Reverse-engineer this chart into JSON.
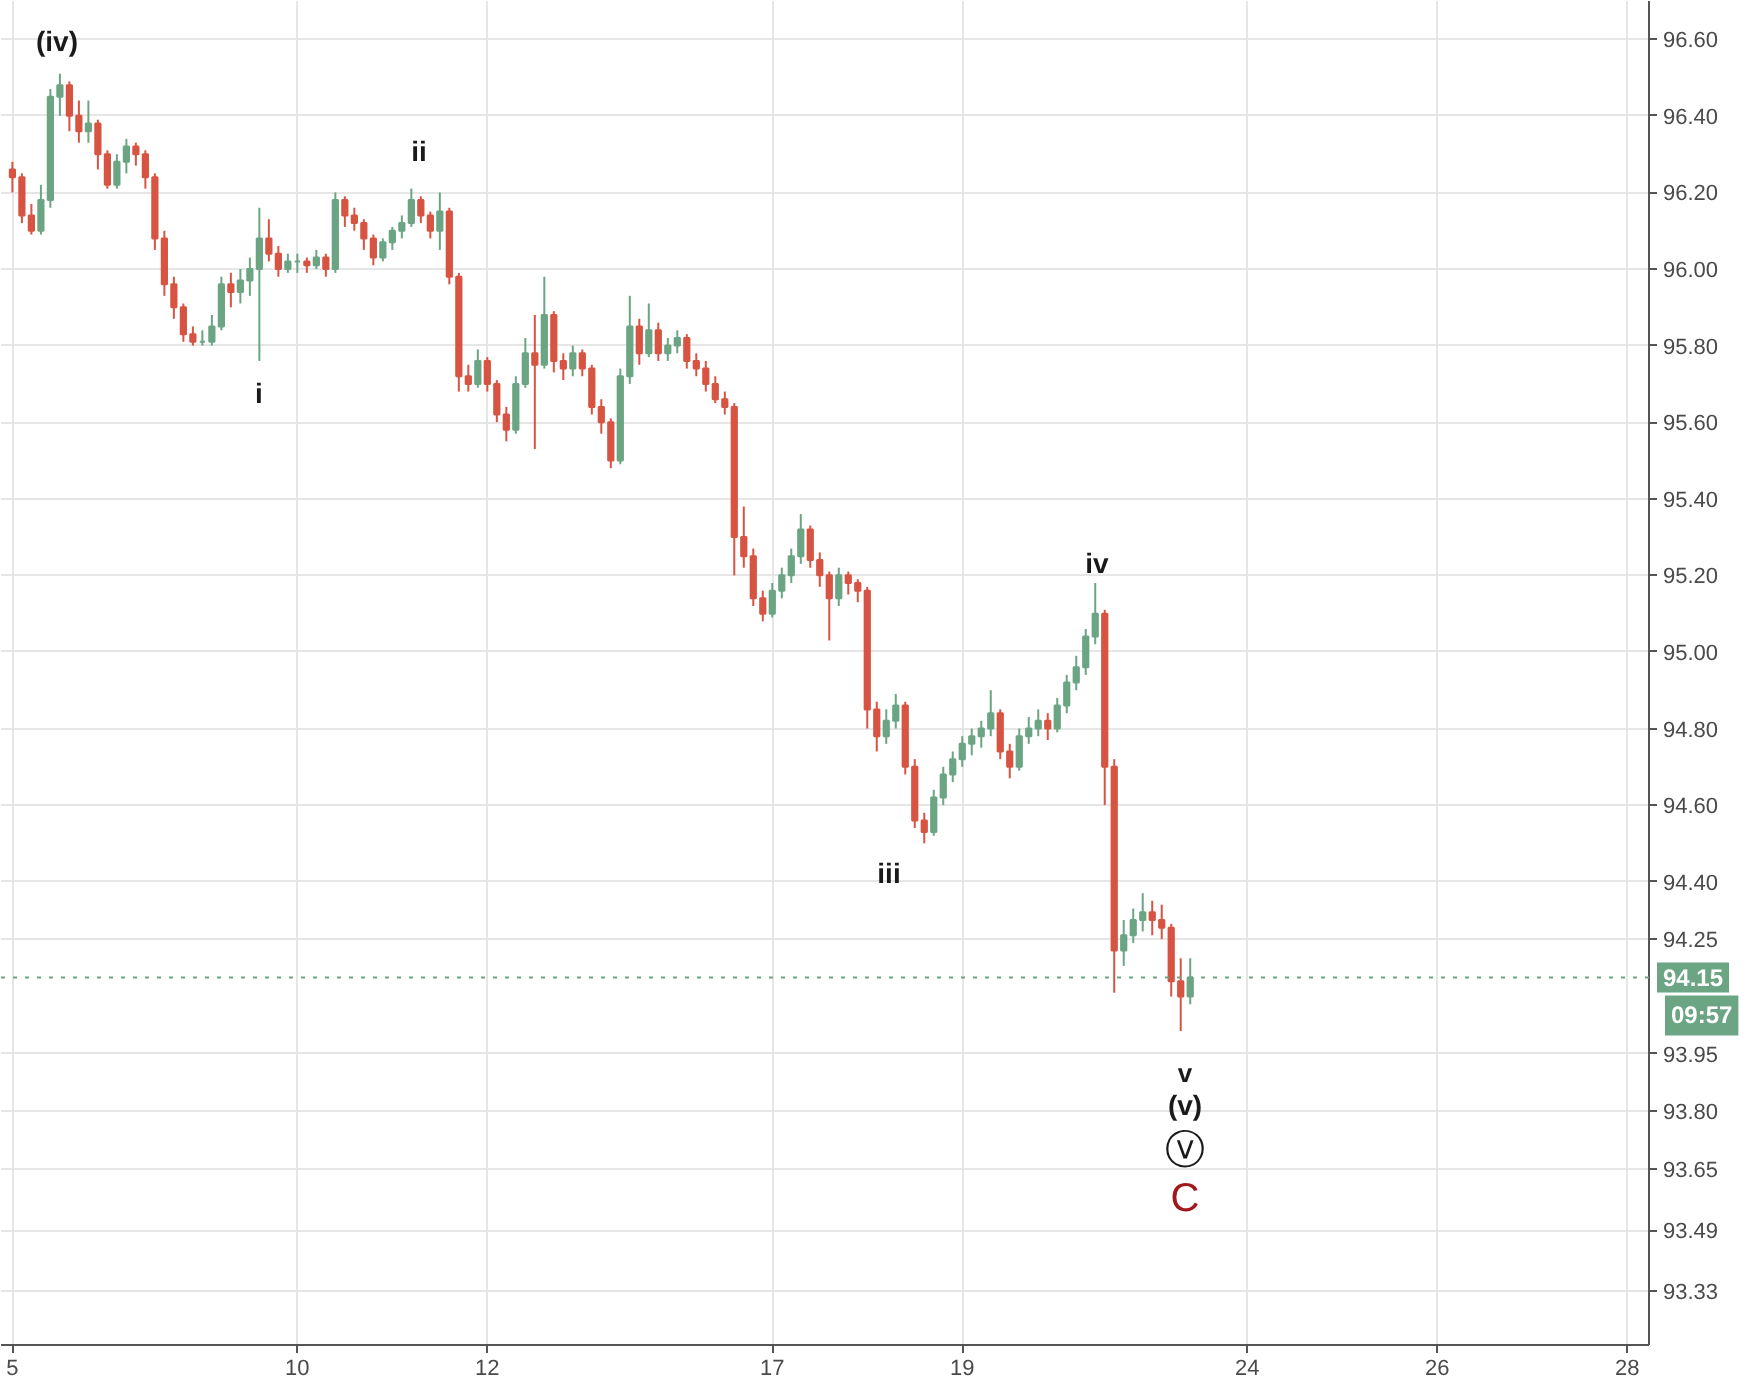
{
  "chart_data": {
    "type": "candlestick",
    "categories": [
      "5",
      null,
      null,
      null,
      null,
      null,
      null,
      null,
      null,
      null,
      null,
      null,
      null,
      null,
      null,
      null,
      null,
      null,
      null,
      null,
      null,
      null,
      null,
      null,
      null,
      null,
      null,
      null,
      null,
      null,
      "10",
      null,
      null,
      null,
      null,
      null,
      null,
      null,
      null,
      null,
      null,
      null,
      null,
      null,
      null,
      null,
      null,
      null,
      null,
      null,
      "12",
      null,
      null,
      null,
      null,
      null,
      null,
      null,
      null,
      null,
      null,
      null,
      null,
      null,
      null,
      null,
      null,
      null,
      null,
      null,
      null,
      null,
      null,
      null,
      null,
      null,
      null,
      null,
      null,
      null,
      "17",
      null,
      null,
      null,
      null,
      null,
      null,
      null,
      null,
      null,
      null,
      null,
      null,
      null,
      null,
      null,
      null,
      null,
      null,
      null,
      "19",
      null,
      null,
      null,
      null,
      null,
      null,
      null,
      null,
      null,
      null,
      null,
      null,
      null,
      null,
      null,
      null,
      null,
      null,
      null,
      null,
      null,
      null,
      null,
      null,
      null,
      null,
      null,
      null,
      null,
      "24",
      null,
      null,
      null,
      null,
      null,
      null,
      null,
      null,
      null,
      null,
      null,
      null,
      null,
      null,
      null,
      null,
      null,
      null,
      null,
      "26",
      null,
      null,
      null,
      null,
      null,
      null,
      null,
      null,
      null,
      null,
      null,
      null,
      null,
      null,
      null,
      null,
      null,
      null,
      null,
      "28"
    ],
    "ohlc": [
      [
        96.26,
        96.28,
        96.2,
        96.24
      ],
      [
        96.24,
        96.25,
        96.12,
        96.14
      ],
      [
        96.14,
        96.17,
        96.09,
        96.1
      ],
      [
        96.1,
        96.22,
        96.09,
        96.18
      ],
      [
        96.18,
        96.47,
        96.16,
        96.45
      ],
      [
        96.45,
        96.51,
        96.4,
        96.48
      ],
      [
        96.48,
        96.49,
        96.36,
        96.4
      ],
      [
        96.4,
        96.44,
        96.33,
        96.36
      ],
      [
        96.36,
        96.44,
        96.33,
        96.38
      ],
      [
        96.38,
        96.39,
        96.26,
        96.3
      ],
      [
        96.3,
        96.31,
        96.21,
        96.22
      ],
      [
        96.22,
        96.3,
        96.21,
        96.28
      ],
      [
        96.28,
        96.34,
        96.25,
        96.32
      ],
      [
        96.32,
        96.33,
        96.27,
        96.3
      ],
      [
        96.3,
        96.31,
        96.21,
        96.24
      ],
      [
        96.24,
        96.25,
        96.05,
        96.08
      ],
      [
        96.08,
        96.1,
        95.93,
        95.96
      ],
      [
        95.96,
        95.98,
        95.87,
        95.9
      ],
      [
        95.9,
        95.91,
        95.81,
        95.83
      ],
      [
        95.83,
        95.85,
        95.8,
        95.81
      ],
      [
        95.81,
        95.84,
        95.8,
        95.81
      ],
      [
        95.81,
        95.88,
        95.8,
        95.85
      ],
      [
        95.85,
        95.98,
        95.84,
        95.96
      ],
      [
        95.96,
        95.99,
        95.9,
        95.94
      ],
      [
        95.94,
        96.0,
        95.91,
        95.97
      ],
      [
        95.97,
        96.03,
        95.93,
        96.0
      ],
      [
        96.0,
        96.16,
        95.76,
        96.08
      ],
      [
        96.08,
        96.13,
        96.02,
        96.04
      ],
      [
        96.04,
        96.06,
        95.98,
        96.0
      ],
      [
        96.0,
        96.04,
        95.99,
        96.02
      ],
      [
        96.02,
        96.04,
        95.99,
        96.02
      ],
      [
        96.02,
        96.03,
        95.99,
        96.01
      ],
      [
        96.01,
        96.05,
        96.0,
        96.03
      ],
      [
        96.03,
        96.04,
        95.98,
        96.0
      ],
      [
        96.0,
        96.2,
        95.99,
        96.18
      ],
      [
        96.18,
        96.19,
        96.11,
        96.14
      ],
      [
        96.14,
        96.16,
        96.1,
        96.12
      ],
      [
        96.12,
        96.13,
        96.05,
        96.08
      ],
      [
        96.08,
        96.09,
        96.01,
        96.03
      ],
      [
        96.03,
        96.08,
        96.02,
        96.07
      ],
      [
        96.07,
        96.11,
        96.05,
        96.1
      ],
      [
        96.1,
        96.14,
        96.08,
        96.12
      ],
      [
        96.12,
        96.21,
        96.11,
        96.18
      ],
      [
        96.18,
        96.19,
        96.12,
        96.14
      ],
      [
        96.14,
        96.15,
        96.08,
        96.1
      ],
      [
        96.1,
        96.2,
        96.05,
        96.15
      ],
      [
        96.15,
        96.16,
        95.96,
        95.98
      ],
      [
        95.98,
        95.99,
        95.68,
        95.72
      ],
      [
        95.72,
        95.75,
        95.68,
        95.7
      ],
      [
        95.7,
        95.79,
        95.69,
        95.76
      ],
      [
        95.76,
        95.77,
        95.68,
        95.7
      ],
      [
        95.7,
        95.71,
        95.6,
        95.62
      ],
      [
        95.62,
        95.64,
        95.55,
        95.58
      ],
      [
        95.58,
        95.72,
        95.57,
        95.7
      ],
      [
        95.7,
        95.82,
        95.69,
        95.78
      ],
      [
        95.78,
        95.88,
        95.53,
        95.75
      ],
      [
        95.75,
        95.98,
        95.74,
        95.88
      ],
      [
        95.88,
        95.89,
        95.73,
        95.76
      ],
      [
        95.76,
        95.78,
        95.71,
        95.74
      ],
      [
        95.74,
        95.8,
        95.72,
        95.78
      ],
      [
        95.78,
        95.79,
        95.72,
        95.74
      ],
      [
        95.74,
        95.75,
        95.62,
        95.64
      ],
      [
        95.64,
        95.66,
        95.57,
        95.6
      ],
      [
        95.6,
        95.61,
        95.48,
        95.5
      ],
      [
        95.5,
        95.74,
        95.49,
        95.72
      ],
      [
        95.72,
        95.93,
        95.7,
        95.85
      ],
      [
        95.85,
        95.87,
        95.75,
        95.78
      ],
      [
        95.78,
        95.91,
        95.77,
        95.84
      ],
      [
        95.84,
        95.86,
        95.76,
        95.78
      ],
      [
        95.78,
        95.82,
        95.76,
        95.8
      ],
      [
        95.8,
        95.84,
        95.78,
        95.82
      ],
      [
        95.82,
        95.83,
        95.74,
        95.76
      ],
      [
        95.76,
        95.78,
        95.72,
        95.74
      ],
      [
        95.74,
        95.76,
        95.68,
        95.7
      ],
      [
        95.7,
        95.72,
        95.65,
        95.66
      ],
      [
        95.66,
        95.68,
        95.62,
        95.64
      ],
      [
        95.64,
        95.65,
        95.2,
        95.3
      ],
      [
        95.3,
        95.38,
        95.22,
        95.25
      ],
      [
        95.25,
        95.27,
        95.12,
        95.14
      ],
      [
        95.14,
        95.16,
        95.08,
        95.1
      ],
      [
        95.1,
        95.18,
        95.09,
        95.16
      ],
      [
        95.16,
        95.22,
        95.14,
        95.2
      ],
      [
        95.2,
        95.27,
        95.18,
        95.25
      ],
      [
        95.25,
        95.36,
        95.23,
        95.32
      ],
      [
        95.32,
        95.33,
        95.22,
        95.24
      ],
      [
        95.24,
        95.26,
        95.17,
        95.2
      ],
      [
        95.2,
        95.21,
        95.03,
        95.14
      ],
      [
        95.14,
        95.22,
        95.12,
        95.2
      ],
      [
        95.2,
        95.21,
        95.15,
        95.18
      ],
      [
        95.18,
        95.19,
        95.13,
        95.16
      ],
      [
        95.16,
        95.17,
        94.8,
        94.85
      ],
      [
        94.85,
        94.87,
        94.74,
        94.78
      ],
      [
        94.78,
        94.85,
        94.76,
        94.82
      ],
      [
        94.82,
        94.89,
        94.8,
        94.86
      ],
      [
        94.86,
        94.87,
        94.68,
        94.7
      ],
      [
        94.7,
        94.72,
        94.54,
        94.56
      ],
      [
        94.56,
        94.58,
        94.5,
        94.53
      ],
      [
        94.53,
        94.64,
        94.52,
        94.62
      ],
      [
        94.62,
        94.7,
        94.6,
        94.68
      ],
      [
        94.68,
        94.74,
        94.66,
        94.72
      ],
      [
        94.72,
        94.78,
        94.7,
        94.76
      ],
      [
        94.76,
        94.8,
        94.73,
        94.78
      ],
      [
        94.78,
        94.82,
        94.75,
        94.8
      ],
      [
        94.8,
        94.9,
        94.78,
        94.84
      ],
      [
        94.84,
        94.85,
        94.72,
        94.74
      ],
      [
        94.74,
        94.76,
        94.67,
        94.7
      ],
      [
        94.7,
        94.8,
        94.69,
        94.78
      ],
      [
        94.78,
        94.83,
        94.76,
        94.8
      ],
      [
        94.8,
        94.85,
        94.78,
        94.82
      ],
      [
        94.82,
        94.84,
        94.77,
        94.8
      ],
      [
        94.8,
        94.88,
        94.79,
        94.86
      ],
      [
        94.86,
        94.94,
        94.84,
        94.92
      ],
      [
        94.92,
        94.99,
        94.9,
        94.96
      ],
      [
        94.96,
        95.06,
        94.94,
        95.04
      ],
      [
        95.04,
        95.18,
        95.02,
        95.1
      ],
      [
        95.1,
        95.11,
        94.6,
        94.7
      ],
      [
        94.7,
        94.72,
        94.11,
        94.22
      ],
      [
        94.22,
        94.3,
        94.18,
        94.26
      ],
      [
        94.26,
        94.33,
        94.24,
        94.3
      ],
      [
        94.3,
        94.37,
        94.27,
        94.32
      ],
      [
        94.32,
        94.35,
        94.26,
        94.3
      ],
      [
        94.3,
        94.34,
        94.25,
        94.28
      ],
      [
        94.28,
        94.29,
        94.1,
        94.14
      ],
      [
        94.14,
        94.2,
        94.01,
        94.1
      ],
      [
        94.1,
        94.2,
        94.08,
        94.15
      ],
      null,
      null,
      null,
      null,
      null,
      null,
      null,
      null,
      null,
      null,
      null,
      null,
      null,
      null,
      null,
      null,
      null,
      null,
      null,
      null,
      null,
      null,
      null,
      null,
      null,
      null,
      null,
      null,
      null,
      null,
      null,
      null,
      null,
      null,
      null,
      null,
      null,
      null,
      null,
      null,
      null,
      null,
      null,
      null,
      null,
      null
    ],
    "colors": [
      "#d75442",
      "#d75442",
      "#d75442",
      "#6ba583",
      "#6ba583",
      "#6ba583",
      "#d75442",
      "#d75442",
      "#6ba583",
      "#d75442",
      "#d75442",
      "#6ba583",
      "#6ba583",
      "#d75442",
      "#d75442",
      "#d75442",
      "#d75442",
      "#d75442",
      "#d75442",
      "#d75442",
      "#6ba583",
      "#6ba583",
      "#6ba583",
      "#d75442",
      "#6ba583",
      "#6ba583",
      "#6ba583",
      "#d75442",
      "#d75442",
      "#6ba583",
      "#6ba583",
      "#d75442",
      "#6ba583",
      "#d75442",
      "#6ba583",
      "#d75442",
      "#d75442",
      "#d75442",
      "#d75442",
      "#6ba583",
      "#6ba583",
      "#6ba583",
      "#6ba583",
      "#d75442",
      "#d75442",
      "#6ba583",
      "#d75442",
      "#d75442",
      "#d75442",
      "#6ba583",
      "#d75442",
      "#d75442",
      "#d75442",
      "#6ba583",
      "#6ba583",
      "#d75442",
      "#6ba583",
      "#d75442",
      "#d75442",
      "#6ba583",
      "#d75442",
      "#d75442",
      "#d75442",
      "#d75442",
      "#6ba583",
      "#6ba583",
      "#d75442",
      "#6ba583",
      "#d75442",
      "#6ba583",
      "#6ba583",
      "#d75442",
      "#d75442",
      "#d75442",
      "#d75442",
      "#d75442",
      "#d75442",
      "#d75442",
      "#d75442",
      "#d75442",
      "#6ba583",
      "#6ba583",
      "#6ba583",
      "#6ba583",
      "#d75442",
      "#d75442",
      "#d75442",
      "#6ba583",
      "#d75442",
      "#d75442",
      "#d75442",
      "#d75442",
      "#6ba583",
      "#6ba583",
      "#d75442",
      "#d75442",
      "#d75442",
      "#6ba583",
      "#6ba583",
      "#6ba583",
      "#6ba583",
      "#6ba583",
      "#6ba583",
      "#6ba583",
      "#d75442",
      "#d75442",
      "#6ba583",
      "#6ba583",
      "#6ba583",
      "#d75442",
      "#6ba583",
      "#6ba583",
      "#6ba583",
      "#6ba583",
      "#6ba583",
      "#d75442",
      "#d75442",
      "#6ba583",
      "#6ba583",
      "#6ba583",
      "#d75442",
      "#d75442",
      "#d75442",
      "#d75442",
      "#6ba583",
      null,
      null,
      null,
      null,
      null,
      null,
      null,
      null,
      null,
      null,
      null,
      null,
      null,
      null,
      null,
      null,
      null,
      null,
      null,
      null,
      null,
      null,
      null,
      null,
      null,
      null,
      null,
      null,
      null,
      null,
      null,
      null,
      null,
      null,
      null,
      null,
      null,
      null,
      null,
      null,
      null,
      null,
      null,
      null,
      null,
      null
    ],
    "ylim": [
      93.19,
      96.7
    ],
    "yticks": [
      {
        "value": 96.6,
        "label": "96.60"
      },
      {
        "value": 96.4,
        "label": "96.40"
      },
      {
        "value": 96.2,
        "label": "96.20"
      },
      {
        "value": 96.0,
        "label": "96.00"
      },
      {
        "value": 95.8,
        "label": "95.80"
      },
      {
        "value": 95.6,
        "label": "95.60"
      },
      {
        "value": 95.4,
        "label": "95.40"
      },
      {
        "value": 95.2,
        "label": "95.20"
      },
      {
        "value": 95.0,
        "label": "95.00"
      },
      {
        "value": 94.8,
        "label": "94.80"
      },
      {
        "value": 94.6,
        "label": "94.60"
      },
      {
        "value": 94.4,
        "label": "94.40"
      },
      {
        "value": 94.25,
        "label": "94.25"
      },
      {
        "value": 93.95,
        "label": "93.95"
      },
      {
        "value": 93.8,
        "label": "93.80"
      },
      {
        "value": 93.65,
        "label": "93.65"
      },
      {
        "value": 93.49,
        "label": "93.49"
      },
      {
        "value": 93.33,
        "label": "93.33"
      }
    ],
    "grid": true,
    "ref_lines": [
      {
        "axis": "y",
        "value": 94.15,
        "label": "94.15",
        "color": "#6ba583",
        "line_style": "dotted"
      }
    ],
    "annotations": [
      "(iv)",
      "ii",
      "i",
      "iii",
      "iv",
      "v",
      "(v)",
      "ⓥ",
      "C",
      "09:57"
    ]
  }
}
